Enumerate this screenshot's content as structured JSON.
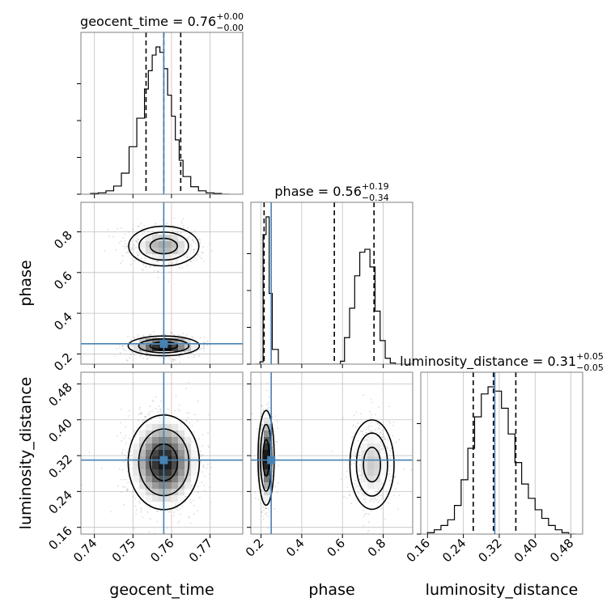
{
  "chart_data": {
    "type": "corner",
    "parameters": [
      "geocent_time",
      "phase",
      "luminosity_distance"
    ],
    "truths": {
      "geocent_time": 0.758,
      "phase": 0.25,
      "luminosity_distance": 0.31
    },
    "ranges": {
      "geocent_time": [
        0.7365,
        0.7785
      ],
      "phase": [
        0.15,
        0.945
      ],
      "luminosity_distance": [
        0.145,
        0.506
      ]
    },
    "ticks": {
      "geocent_time": {
        "values": [
          0.74,
          0.75,
          0.76,
          0.77
        ],
        "labels": [
          "0.74",
          "0.75",
          "0.76",
          "0.77"
        ]
      },
      "phase": {
        "values": [
          0.2,
          0.4,
          0.6,
          0.8
        ],
        "labels": [
          "0.2",
          "0.4",
          "0.6",
          "0.8"
        ]
      },
      "luminosity_distance": {
        "values": [
          0.16,
          0.24,
          0.32,
          0.4,
          0.48
        ],
        "labels": [
          "0.16",
          "0.24",
          "0.32",
          "0.40",
          "0.48"
        ]
      }
    },
    "marginals": [
      {
        "parameter": "geocent_time",
        "title": {
          "prefix": "geocent_time = ",
          "median": "0.76",
          "plus": "+0.00",
          "minus": "−0.00"
        },
        "quantiles": [
          0.7534,
          0.758,
          0.7624
        ],
        "bin_edges": [
          0.739,
          0.741,
          0.743,
          0.745,
          0.747,
          0.749,
          0.751,
          0.753,
          0.754,
          0.755,
          0.756,
          0.757,
          0.758,
          0.759,
          0.76,
          0.761,
          0.762,
          0.763,
          0.765,
          0.767,
          0.769,
          0.771,
          0.773,
          0.775
        ],
        "counts": [
          1,
          2,
          5,
          12,
          31,
          70,
          112,
          155,
          182,
          205,
          217,
          209,
          185,
          146,
          115,
          80,
          50,
          26,
          11,
          5,
          2,
          1,
          0
        ]
      },
      {
        "parameter": "phase",
        "title": {
          "prefix": "phase = ",
          "median": "0.56",
          "plus": "+0.19",
          "minus": "−0.34"
        },
        "quantiles": [
          0.215,
          0.56,
          0.755
        ],
        "bin_edges": [
          0.17,
          0.195,
          0.21,
          0.225,
          0.24,
          0.255,
          0.285,
          0.59,
          0.61,
          0.635,
          0.66,
          0.685,
          0.71,
          0.735,
          0.76,
          0.785,
          0.81,
          0.835,
          0.86,
          0.89
        ],
        "counts": [
          0,
          4,
          220,
          250,
          120,
          25,
          0,
          5,
          45,
          95,
          150,
          190,
          195,
          165,
          90,
          40,
          10,
          2,
          0
        ]
      },
      {
        "parameter": "luminosity_distance",
        "title": {
          "prefix": "luminosity_distance = ",
          "median": "0.31",
          "plus": "+0.05",
          "minus": "−0.05"
        },
        "quantiles": [
          0.262,
          0.307,
          0.357
        ],
        "bin_edges": [
          0.16,
          0.175,
          0.19,
          0.205,
          0.22,
          0.235,
          0.25,
          0.265,
          0.28,
          0.295,
          0.31,
          0.325,
          0.34,
          0.355,
          0.37,
          0.385,
          0.4,
          0.415,
          0.43,
          0.445,
          0.46,
          0.475,
          0.49
        ],
        "counts": [
          1,
          3,
          6,
          10,
          20,
          38,
          60,
          82,
          98,
          103,
          100,
          88,
          70,
          50,
          35,
          25,
          17,
          11,
          6,
          3,
          1,
          0
        ]
      }
    ],
    "joint": [
      {
        "x": "geocent_time",
        "y": "phase",
        "blobs": [
          {
            "cx": 0.758,
            "cy": 0.24,
            "sx": 0.0042,
            "sy": 0.022,
            "w": 0.55
          },
          {
            "cx": 0.758,
            "cy": 0.73,
            "sx": 0.0042,
            "sy": 0.045,
            "w": 0.45
          }
        ]
      },
      {
        "x": "geocent_time",
        "y": "luminosity_distance",
        "blobs": [
          {
            "cx": 0.758,
            "cy": 0.305,
            "sx": 0.0042,
            "sy": 0.048,
            "w": 1.0
          }
        ]
      },
      {
        "x": "phase",
        "y": "luminosity_distance",
        "blobs": [
          {
            "cx": 0.225,
            "cy": 0.315,
            "sx": 0.018,
            "sy": 0.048,
            "w": 0.55
          },
          {
            "cx": 0.745,
            "cy": 0.3,
            "sx": 0.05,
            "sy": 0.046,
            "w": 0.45
          }
        ]
      }
    ],
    "colors": {
      "truth": "#4682b4",
      "line": "#000000",
      "grid": "#c0c0c0",
      "scatter": "#9a9a9a"
    },
    "grid": true
  }
}
